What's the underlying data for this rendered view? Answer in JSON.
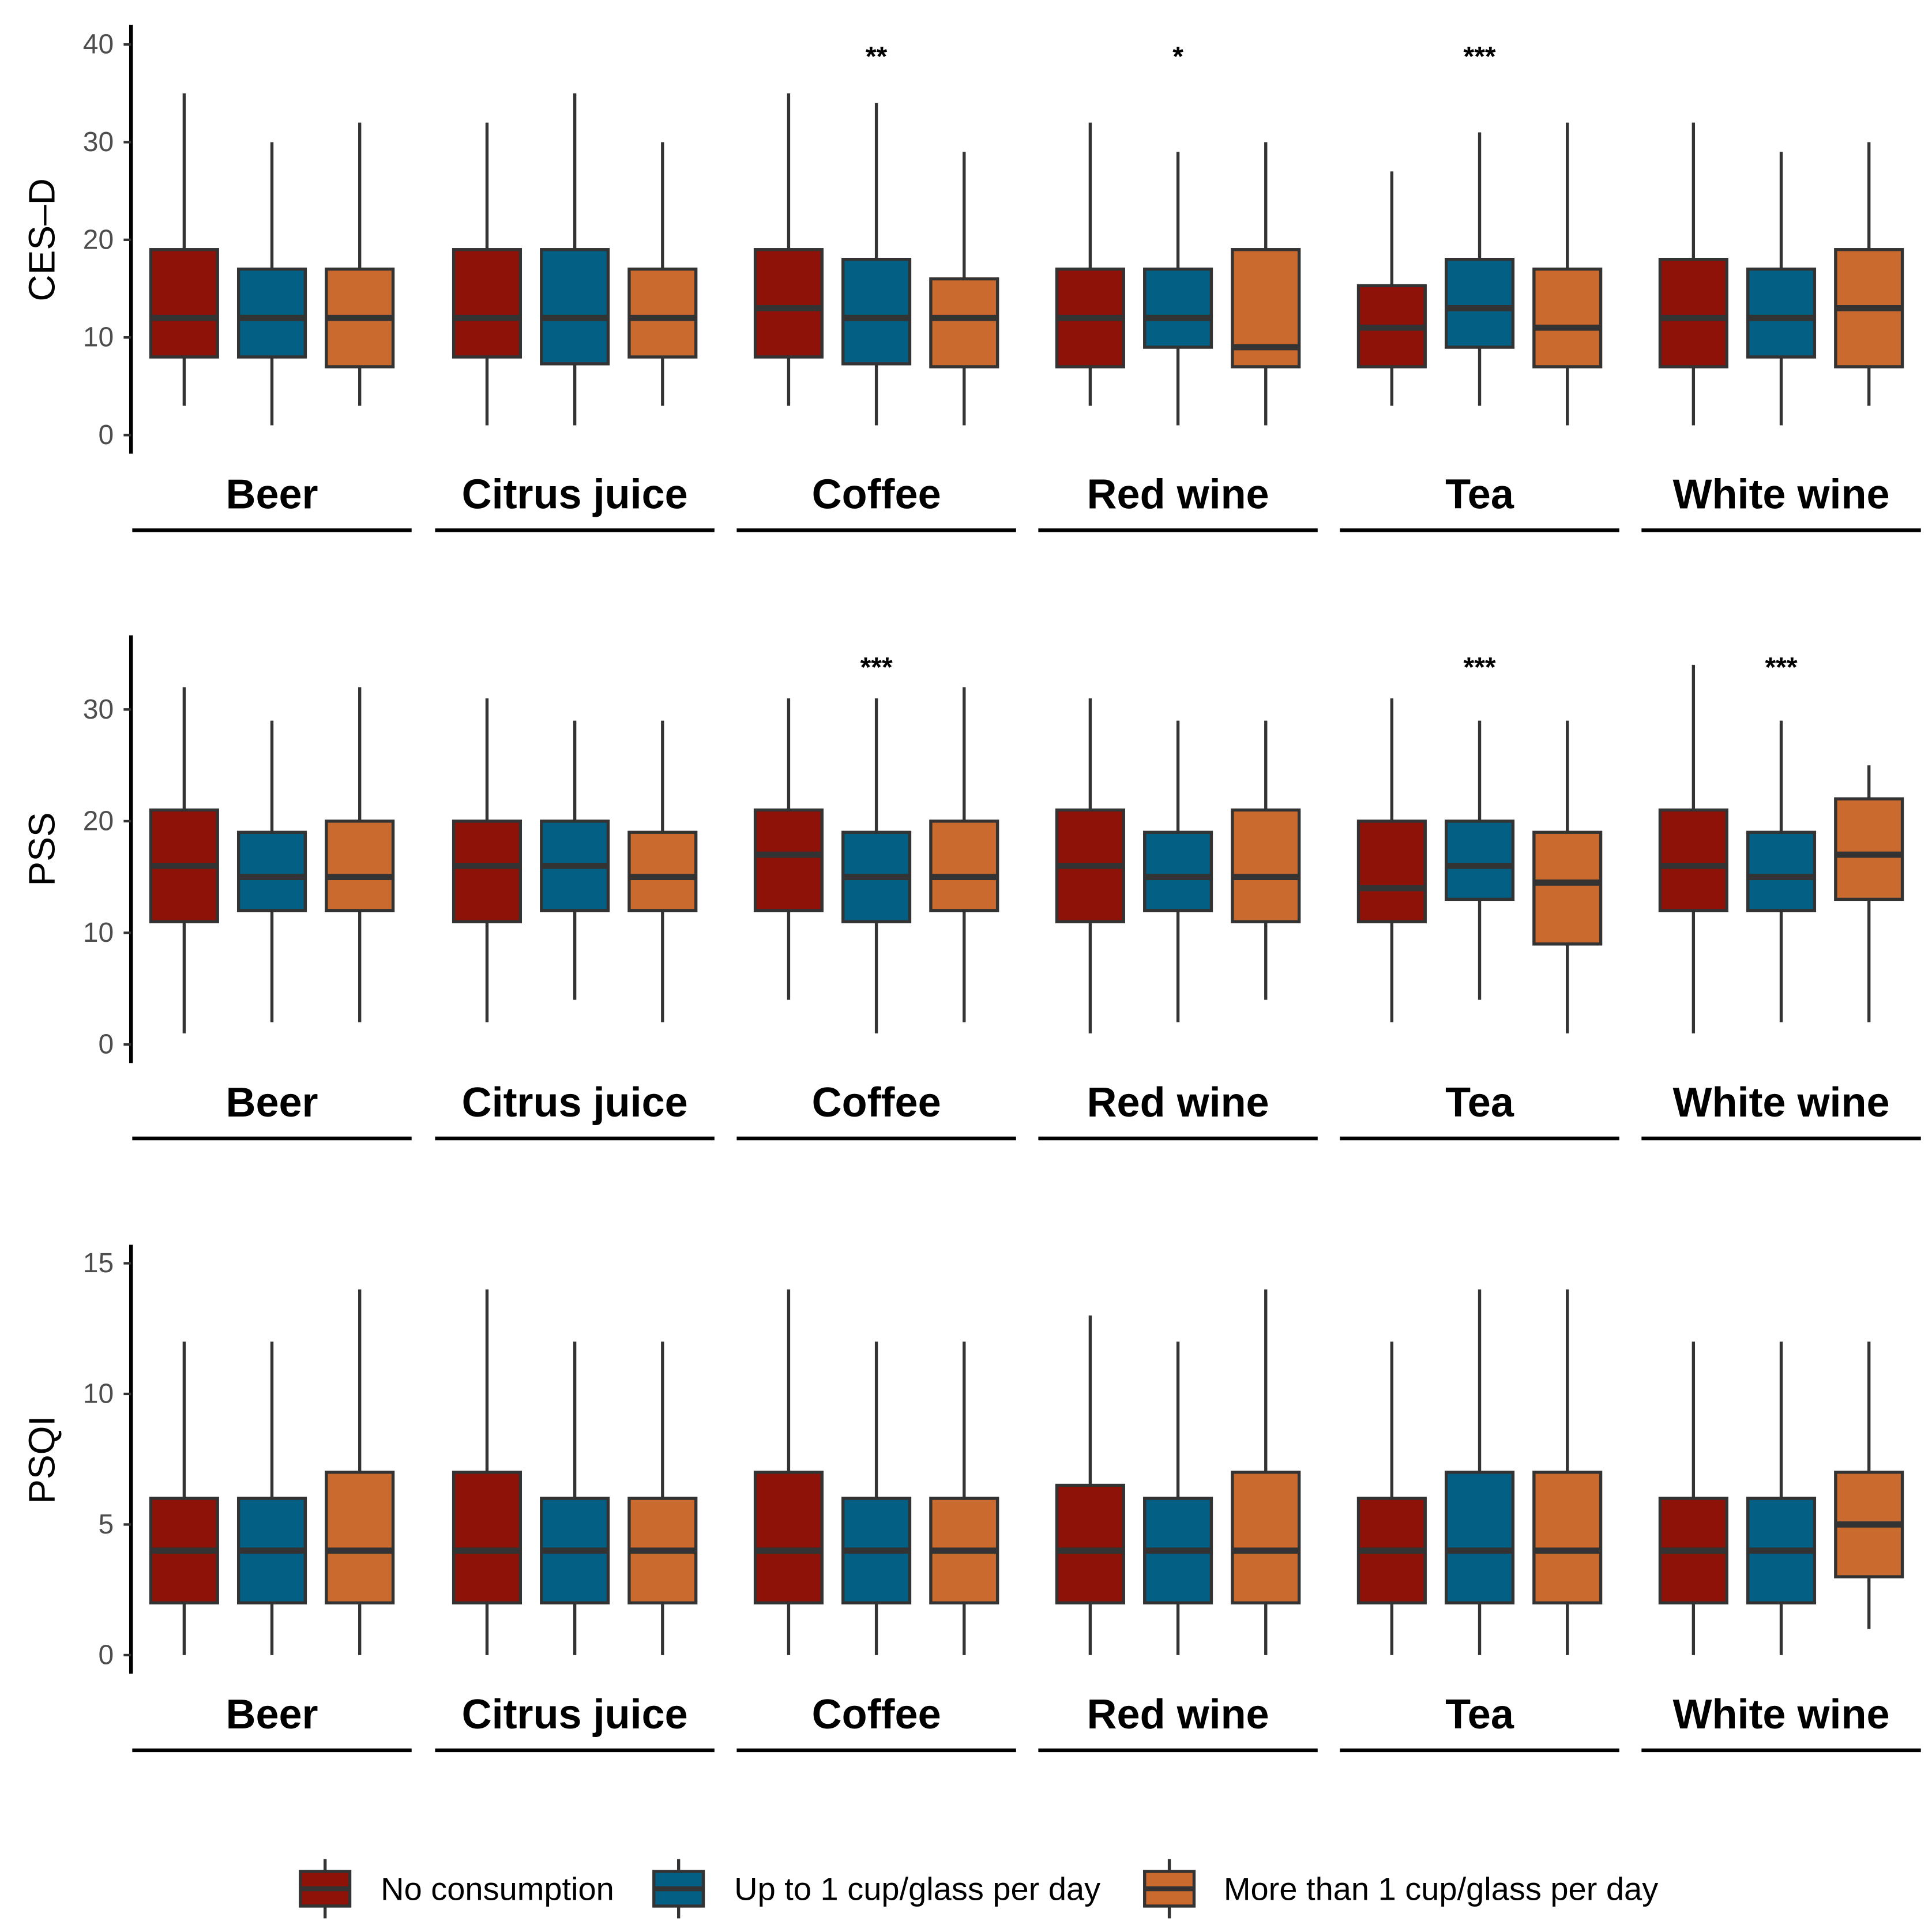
{
  "chart_data": {
    "type": "boxplot",
    "groups": [
      "Beer",
      "Citrus juice",
      "Coffee",
      "Red wine",
      "Tea",
      "White wine"
    ],
    "legend": {
      "position": "bottom",
      "entries": [
        {
          "key": "none",
          "label": "No consumption",
          "color": "#8E1208"
        },
        {
          "key": "low",
          "label": "Up to 1 cup/glass per day",
          "color": "#035F83"
        },
        {
          "key": "high",
          "label": "More than 1 cup/glass per day",
          "color": "#CB6A2E"
        }
      ]
    },
    "panels": [
      {
        "id": "cesd",
        "ylabel": "CES–D",
        "ylim": [
          -2,
          42
        ],
        "yticks": [
          0,
          10,
          20,
          30,
          40
        ],
        "significance": [
          "",
          "",
          "**",
          "*",
          "***",
          ""
        ],
        "boxes": [
          [
            [
              3,
              8,
              12,
              19,
              35
            ],
            [
              1,
              8,
              12,
              17,
              30
            ],
            [
              3,
              7,
              12,
              17,
              32
            ]
          ],
          [
            [
              1,
              8,
              12,
              19,
              32
            ],
            [
              1,
              7.3,
              12,
              19,
              35
            ],
            [
              3,
              8,
              12,
              17,
              30
            ]
          ],
          [
            [
              3,
              8,
              13,
              19,
              35
            ],
            [
              1,
              7.3,
              12,
              18,
              34
            ],
            [
              1,
              7,
              12,
              16,
              29
            ]
          ],
          [
            [
              3,
              7,
              12,
              17,
              32
            ],
            [
              1,
              9,
              12,
              17,
              29
            ],
            [
              1,
              7,
              9,
              19,
              30
            ]
          ],
          [
            [
              3,
              7,
              11,
              15.3,
              27
            ],
            [
              3,
              9,
              13,
              18,
              31
            ],
            [
              1,
              7,
              11,
              17,
              32
            ]
          ],
          [
            [
              1,
              7,
              12,
              18,
              32
            ],
            [
              1,
              8,
              12,
              17,
              29
            ],
            [
              3,
              7,
              13,
              19,
              30
            ]
          ]
        ]
      },
      {
        "id": "pss",
        "ylabel": "PSS",
        "ylim": [
          -1.5,
          36.5
        ],
        "yticks": [
          0,
          10,
          20,
          30
        ],
        "significance": [
          "",
          "",
          "***",
          "",
          "***",
          "***"
        ],
        "boxes": [
          [
            [
              1,
              11,
              16,
              21,
              32
            ],
            [
              2,
              12,
              15,
              19,
              29
            ],
            [
              2,
              12,
              15,
              20,
              32
            ]
          ],
          [
            [
              2,
              11,
              16,
              20,
              31
            ],
            [
              4,
              12,
              16,
              20,
              29
            ],
            [
              2,
              12,
              15,
              19,
              29
            ]
          ],
          [
            [
              4,
              12,
              17,
              21,
              31
            ],
            [
              1,
              11,
              15,
              19,
              31
            ],
            [
              2,
              12,
              15,
              20,
              32
            ]
          ],
          [
            [
              1,
              11,
              16,
              21,
              31
            ],
            [
              2,
              12,
              15,
              19,
              29
            ],
            [
              4,
              11,
              15,
              21,
              29
            ]
          ],
          [
            [
              2,
              11,
              14,
              20,
              31
            ],
            [
              4,
              13,
              16,
              20,
              29
            ],
            [
              1,
              9,
              14.5,
              19,
              29
            ]
          ],
          [
            [
              1,
              12,
              16,
              21,
              34
            ],
            [
              2,
              12,
              15,
              19,
              29
            ],
            [
              2,
              13,
              17,
              22,
              25
            ]
          ]
        ]
      },
      {
        "id": "psqi",
        "ylabel": "PSQI",
        "ylim": [
          -0.7,
          15.6
        ],
        "yticks": [
          0,
          5,
          10,
          15
        ],
        "significance": [
          "",
          "",
          "",
          "",
          "",
          ""
        ],
        "boxes": [
          [
            [
              0,
              2,
              4,
              6,
              12
            ],
            [
              0,
              2,
              4,
              6,
              12
            ],
            [
              0,
              2,
              4,
              7,
              14
            ]
          ],
          [
            [
              0,
              2,
              4,
              7,
              14
            ],
            [
              0,
              2,
              4,
              6,
              12
            ],
            [
              0,
              2,
              4,
              6,
              12
            ]
          ],
          [
            [
              0,
              2,
              4,
              7,
              14
            ],
            [
              0,
              2,
              4,
              6,
              12
            ],
            [
              0,
              2,
              4,
              6,
              12
            ]
          ],
          [
            [
              0,
              2,
              4,
              6.5,
              13
            ],
            [
              0,
              2,
              4,
              6,
              12
            ],
            [
              0,
              2,
              4,
              7,
              14
            ]
          ],
          [
            [
              0,
              2,
              4,
              6,
              12
            ],
            [
              0,
              2,
              4,
              7,
              14
            ],
            [
              0,
              2,
              4,
              7,
              14
            ]
          ],
          [
            [
              0,
              2,
              4,
              6,
              12
            ],
            [
              0,
              2,
              4,
              6,
              12
            ],
            [
              1,
              3,
              5,
              7,
              12
            ]
          ]
        ]
      }
    ]
  }
}
